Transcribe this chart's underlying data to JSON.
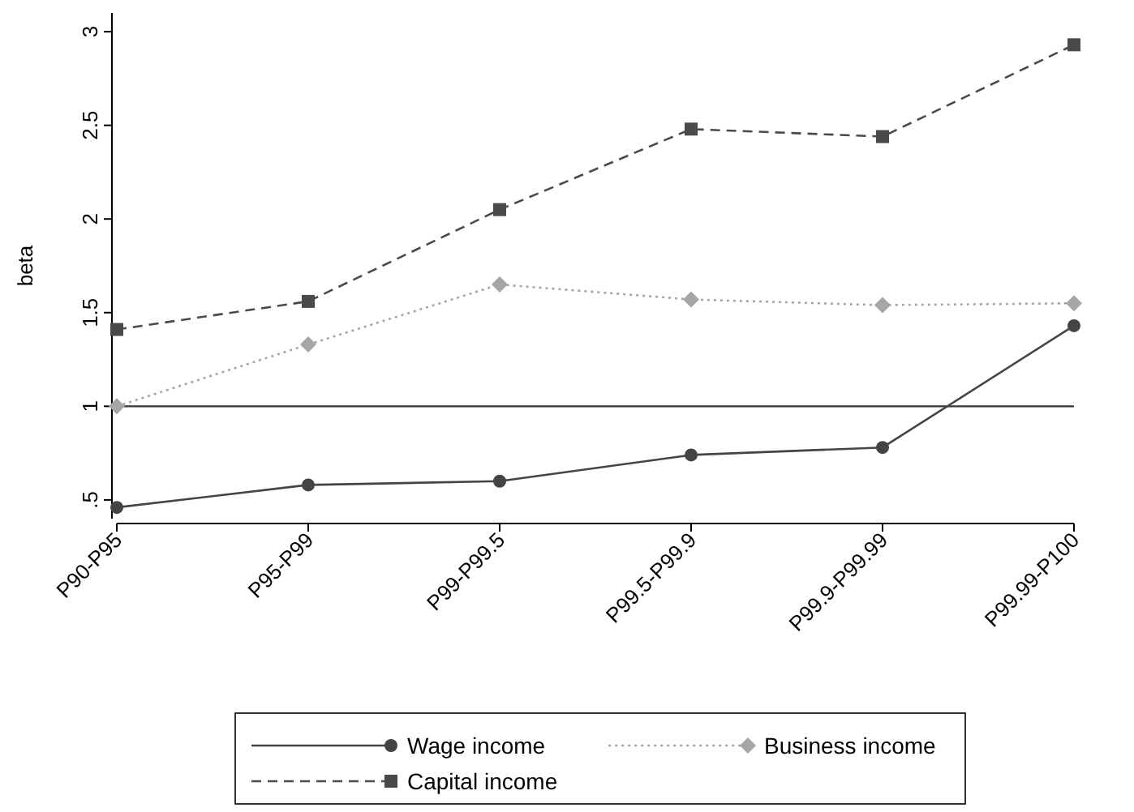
{
  "chart_data": {
    "type": "line",
    "ylabel": "beta",
    "categories": [
      "P90-P95",
      "P95-P99",
      "P99-P99.5",
      "P99.5-P99.9",
      "P99.9-P99.99",
      "P99.99-P100"
    ],
    "ylim": [
      0.4,
      3.1
    ],
    "yticks": [
      {
        "value": 0.5,
        "label": ".5"
      },
      1,
      1.5,
      2,
      2.5,
      3
    ],
    "grid": false,
    "legend": "bottom",
    "ref_lines": [
      {
        "axis": "y",
        "value": 1,
        "color": "#333333"
      }
    ],
    "series": [
      {
        "name": "Wage income",
        "color": "#444444",
        "marker": "circle",
        "line_style": "solid",
        "values": [
          0.46,
          0.58,
          0.6,
          0.74,
          0.78,
          1.43
        ]
      },
      {
        "name": "Business income",
        "color": "#a6a6a6",
        "marker": "diamond",
        "line_style": "dotted",
        "values": [
          1.0,
          1.33,
          1.65,
          1.57,
          1.54,
          1.55
        ]
      },
      {
        "name": "Capital income",
        "color": "#4a4a4a",
        "marker": "square",
        "line_style": "dashed",
        "values": [
          1.41,
          1.56,
          2.05,
          2.48,
          2.44,
          2.93
        ]
      }
    ]
  }
}
